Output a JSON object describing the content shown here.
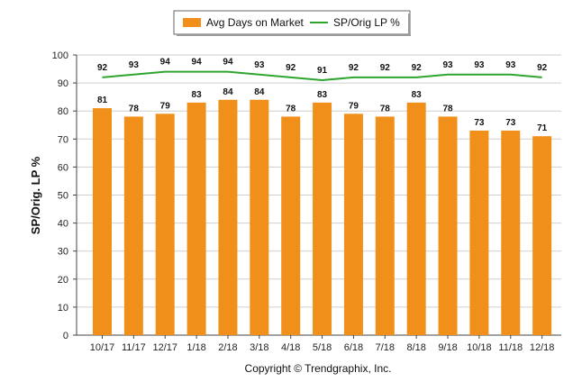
{
  "chart_data": {
    "type": "bar",
    "categories": [
      "10/17",
      "11/17",
      "12/17",
      "1/18",
      "2/18",
      "3/18",
      "4/18",
      "5/18",
      "6/18",
      "7/18",
      "8/18",
      "9/18",
      "10/18",
      "11/18",
      "12/18"
    ],
    "series": [
      {
        "name": "Avg Days on Market",
        "kind": "bar",
        "color": "#f0901a",
        "values": [
          81,
          78,
          79,
          83,
          84,
          84,
          78,
          83,
          79,
          78,
          83,
          78,
          73,
          73,
          71
        ]
      },
      {
        "name": "SP/Orig LP %",
        "kind": "line",
        "color": "#2ea52e",
        "values": [
          92,
          93,
          94,
          94,
          94,
          93,
          92,
          91,
          92,
          92,
          92,
          93,
          93,
          93,
          92
        ]
      }
    ],
    "ylabel": "SP/Orig. LP %",
    "ylim": [
      0,
      100
    ],
    "yticks": [
      0,
      10,
      20,
      30,
      40,
      50,
      60,
      70,
      80,
      90,
      100
    ],
    "grid": true,
    "legend": "top-center"
  },
  "footer": {
    "text": "Copyright © Trendgraphix, Inc."
  }
}
